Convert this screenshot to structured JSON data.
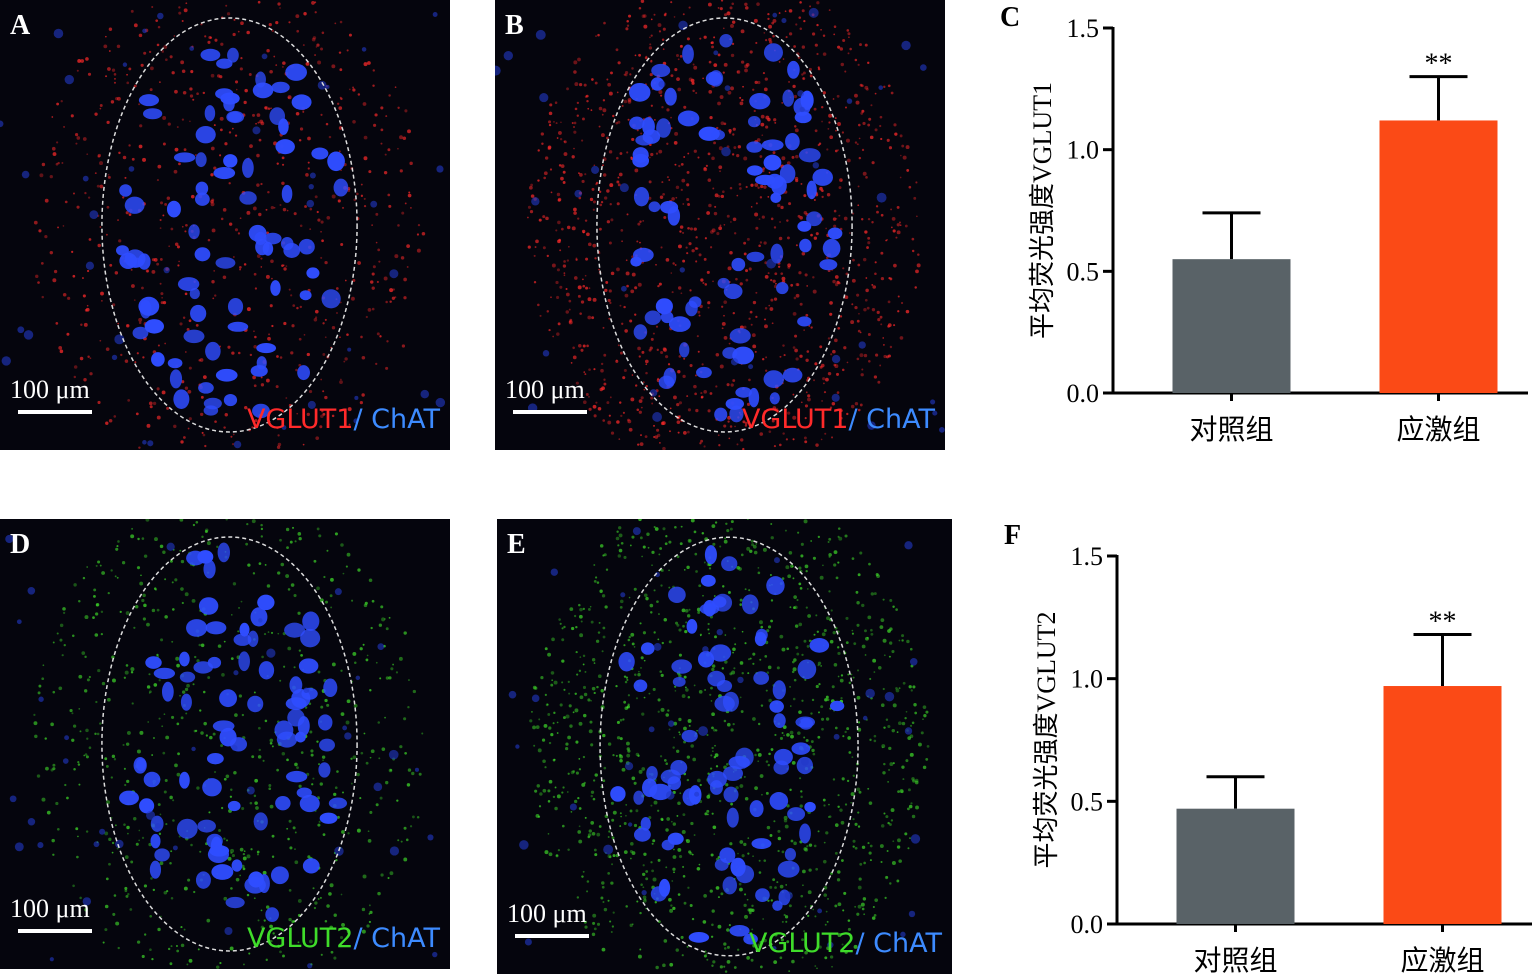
{
  "panels": [
    {
      "label": "A",
      "scale": "100 μm",
      "marker": "VGLUT1",
      "marker_color": "#ff2a2a",
      "stain": "/ ChAT",
      "stain_color": "#3d8bff"
    },
    {
      "label": "B",
      "scale": "100 μm",
      "marker": "VGLUT1",
      "marker_color": "#ff2a2a",
      "stain": "/ ChAT",
      "stain_color": "#3d8bff"
    },
    {
      "label": "D",
      "scale": "100 μm",
      "marker": "VGLUT2",
      "marker_color": "#3fdc2a",
      "stain": "/ ChAT",
      "stain_color": "#3d8bff"
    },
    {
      "label": "E",
      "scale": "100 μm",
      "marker": "VGLUT2",
      "marker_color": "#3fdc2a",
      "stain": "/ ChAT",
      "stain_color": "#3d8bff"
    }
  ],
  "chart_data": [
    {
      "type": "bar",
      "panel_label": "C",
      "y_label": "平均荧光强度VGLUT1",
      "categories": [
        "对照组",
        "应激组"
      ],
      "values": [
        0.55,
        1.12
      ],
      "errors": [
        0.19,
        0.18
      ],
      "colors": [
        "#596267",
        "#fb4a16"
      ],
      "annotations": [
        {
          "category": "应激组",
          "text": "**"
        }
      ],
      "ylim": [
        0,
        1.5
      ],
      "yticks": [
        {
          "value": 0,
          "label": "0.0"
        },
        0.5,
        {
          "value": 1,
          "label": "1.0"
        },
        1.5
      ]
    },
    {
      "type": "bar",
      "panel_label": "F",
      "y_label": "平均荧光强度VGLUT2",
      "categories": [
        "对照组",
        "应激组"
      ],
      "values": [
        0.47,
        0.97
      ],
      "errors": [
        0.13,
        0.21
      ],
      "colors": [
        "#596267",
        "#fb4a16"
      ],
      "annotations": [
        {
          "category": "应激组",
          "text": "**"
        }
      ],
      "ylim": [
        0,
        1.5
      ],
      "yticks": [
        {
          "value": 0,
          "label": "0.0"
        },
        0.5,
        {
          "value": 1,
          "label": "1.0"
        },
        1.5
      ]
    }
  ]
}
